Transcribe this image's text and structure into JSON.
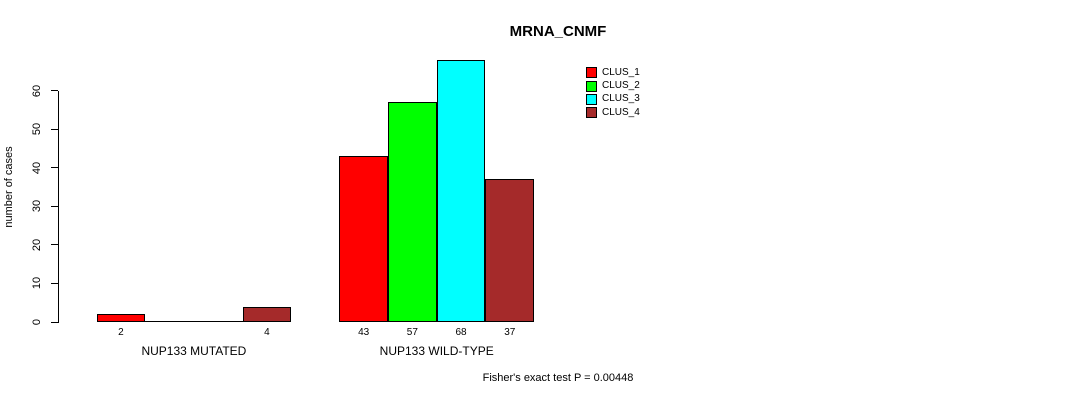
{
  "chart_data": {
    "type": "bar",
    "title": "MRNA_CNMF",
    "ylabel": "number of cases",
    "xlabel": "",
    "ylim": [
      0,
      60
    ],
    "yticks": [
      0,
      10,
      20,
      30,
      40,
      50,
      60
    ],
    "grid": false,
    "legend_position": "top-right",
    "series": [
      {
        "name": "CLUS_1",
        "color": "#ff0000"
      },
      {
        "name": "CLUS_2",
        "color": "#00ff00"
      },
      {
        "name": "CLUS_3",
        "color": "#00ffff"
      },
      {
        "name": "CLUS_4",
        "color": "#a52a2a"
      }
    ],
    "groups": [
      {
        "label": "NUP133 MUTATED",
        "values": [
          2,
          0,
          0,
          4
        ],
        "bar_labels": [
          "2",
          "",
          "",
          "4"
        ]
      },
      {
        "label": "NUP133 WILD-TYPE",
        "values": [
          43,
          57,
          68,
          37
        ],
        "bar_labels": [
          "43",
          "57",
          "68",
          "37"
        ]
      }
    ],
    "footnote": "Fisher's exact test P = 0.00448"
  }
}
